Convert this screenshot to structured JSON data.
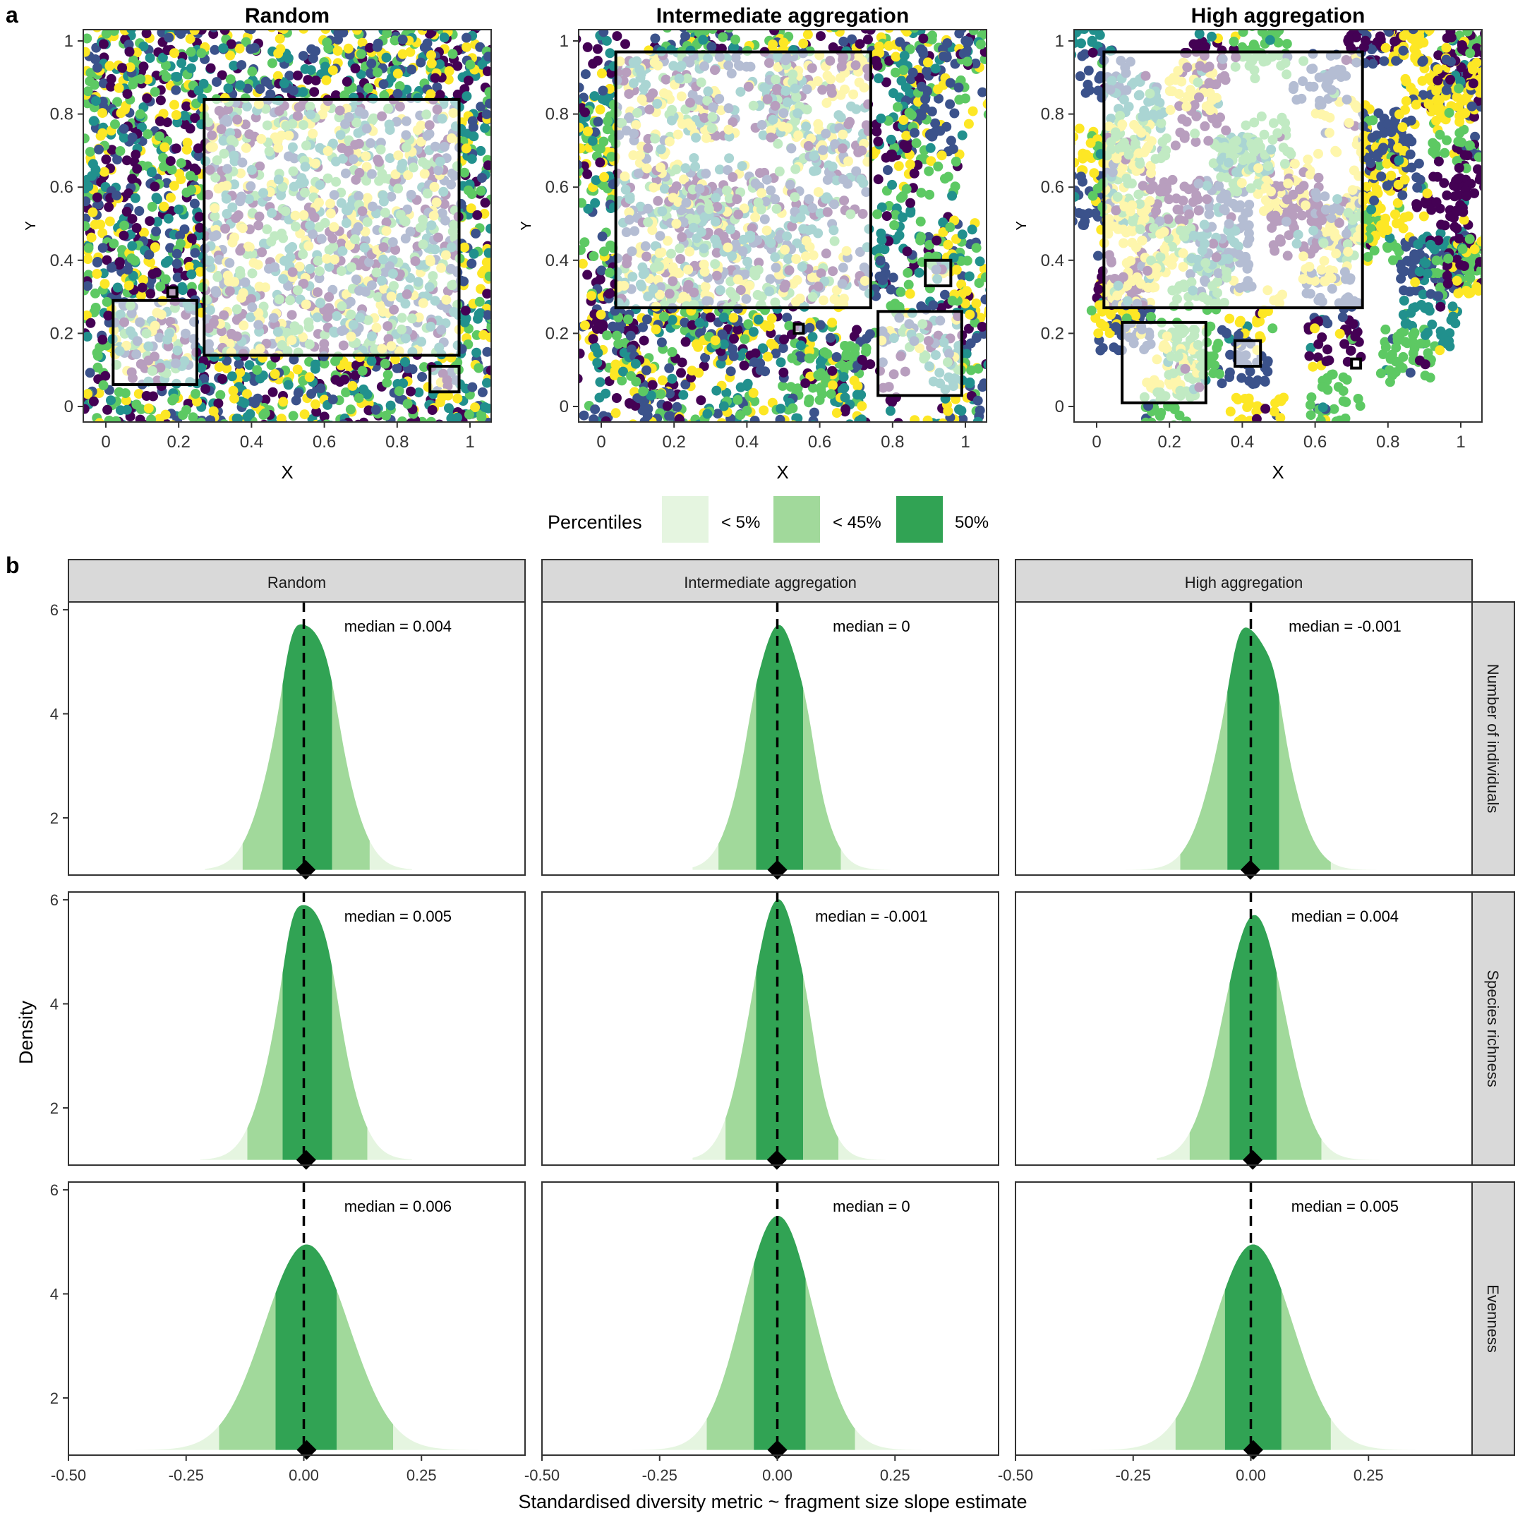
{
  "panel_labels": {
    "a": "a",
    "b": "b"
  },
  "chart_data": [
    {
      "type": "scatter",
      "panel": "a",
      "xlabel": "X",
      "ylabel": "Y",
      "xlim": [
        0,
        1
      ],
      "ylim": [
        0,
        1
      ],
      "x_ticks": [
        "0",
        "0.2",
        "0.4",
        "0.6",
        "0.8",
        "1"
      ],
      "y_ticks": [
        "0",
        "0.2",
        "0.4",
        "0.6",
        "0.8",
        "1"
      ],
      "point_colors": [
        "#440154",
        "#3b528b",
        "#21908d",
        "#5dc963",
        "#fde725"
      ],
      "maps": [
        {
          "title": "Random",
          "aggregation": 0,
          "fragments": [
            {
              "x0": 0.27,
              "y0": 0.14,
              "x1": 0.97,
              "y1": 0.84
            },
            {
              "x0": 0.02,
              "y0": 0.06,
              "x1": 0.25,
              "y1": 0.29
            },
            {
              "x0": 0.89,
              "y0": 0.04,
              "x1": 0.97,
              "y1": 0.11
            },
            {
              "x0": 0.17,
              "y0": 0.3,
              "x1": 0.195,
              "y1": 0.325
            }
          ]
        },
        {
          "title": "Intermediate aggregation",
          "aggregation": 1,
          "fragments": [
            {
              "x0": 0.04,
              "y0": 0.27,
              "x1": 0.74,
              "y1": 0.97
            },
            {
              "x0": 0.76,
              "y0": 0.03,
              "x1": 0.99,
              "y1": 0.26
            },
            {
              "x0": 0.89,
              "y0": 0.33,
              "x1": 0.96,
              "y1": 0.4
            },
            {
              "x0": 0.53,
              "y0": 0.2,
              "x1": 0.555,
              "y1": 0.225
            }
          ]
        },
        {
          "title": "High aggregation",
          "aggregation": 2,
          "fragments": [
            {
              "x0": 0.02,
              "y0": 0.27,
              "x1": 0.73,
              "y1": 0.97
            },
            {
              "x0": 0.07,
              "y0": 0.01,
              "x1": 0.3,
              "y1": 0.23
            },
            {
              "x0": 0.38,
              "y0": 0.11,
              "x1": 0.45,
              "y1": 0.18
            },
            {
              "x0": 0.7,
              "y0": 0.105,
              "x1": 0.725,
              "y1": 0.13
            }
          ]
        }
      ]
    },
    {
      "type": "area",
      "panel": "b",
      "xlabel": "Standardised diversity metric ~ fragment size slope estimate",
      "ylabel": "Density",
      "xlim": [
        -0.5,
        0.47
      ],
      "ylim": [
        0.9,
        6.15
      ],
      "x_ticks": [
        -0.5,
        -0.25,
        0.0,
        0.25
      ],
      "x_tick_labels": [
        "-0.50",
        "-0.25",
        "0.00",
        "0.25"
      ],
      "y_ticks": [
        2,
        4,
        6
      ],
      "y_tick_labels": [
        "2",
        "4",
        "6"
      ],
      "legend": {
        "title": "Percentiles",
        "position": "between-panels",
        "entries": [
          {
            "label": "< 5%",
            "color": "#e5f5e0"
          },
          {
            "label": "< 45%",
            "color": "#a1d99b"
          },
          {
            "label": "50%",
            "color": "#31a354"
          }
        ]
      },
      "columns": [
        "Random",
        "Intermediate aggregation",
        "High aggregation"
      ],
      "rows": [
        "Number of individuals",
        "Species richness",
        "Evenness"
      ],
      "panels": [
        {
          "row": 0,
          "col": 0,
          "median": 0.004,
          "median_label": "median = 0.004",
          "peak": 5.6,
          "sd": 0.065,
          "skew": 0.25,
          "range": [
            -0.21,
            0.23
          ],
          "bands": [
            -0.13,
            -0.045,
            0.06,
            0.14
          ],
          "bumps": [
            {
              "at": -0.03,
              "h": 0.55,
              "w": 0.018
            },
            {
              "at": 0.06,
              "h": 0.35,
              "w": 0.02
            }
          ]
        },
        {
          "row": 0,
          "col": 1,
          "median": 0.0,
          "median_label": "median = 0",
          "peak": 5.7,
          "sd": 0.06,
          "skew": 0.2,
          "range": [
            -0.18,
            0.24
          ],
          "bands": [
            -0.125,
            -0.045,
            0.055,
            0.135
          ],
          "bumps": [
            {
              "at": -0.055,
              "h": 0.25,
              "w": 0.015
            },
            {
              "at": 0.07,
              "h": 0.55,
              "w": 0.018
            }
          ]
        },
        {
          "row": 0,
          "col": 2,
          "median": -0.001,
          "median_label": "median = -0.001",
          "peak": 5.5,
          "sd": 0.065,
          "skew": 0.22,
          "range": [
            -0.3,
            0.3
          ],
          "bands": [
            -0.15,
            -0.05,
            0.06,
            0.17
          ],
          "bumps": [
            {
              "at": -0.03,
              "h": 0.45,
              "w": 0.018
            },
            {
              "at": 0.055,
              "h": 0.45,
              "w": 0.016
            }
          ]
        },
        {
          "row": 1,
          "col": 0,
          "median": 0.005,
          "median_label": "median = 0.005",
          "peak": 5.8,
          "sd": 0.063,
          "skew": 0.25,
          "range": [
            -0.22,
            0.23
          ],
          "bands": [
            -0.12,
            -0.045,
            0.06,
            0.135
          ],
          "bumps": [
            {
              "at": -0.03,
              "h": 0.55,
              "w": 0.018
            },
            {
              "at": 0.06,
              "h": 0.35,
              "w": 0.02
            }
          ]
        },
        {
          "row": 1,
          "col": 1,
          "median": -0.001,
          "median_label": "median = -0.001",
          "peak": 6.0,
          "sd": 0.058,
          "skew": 0.2,
          "range": [
            -0.18,
            0.23
          ],
          "bands": [
            -0.11,
            -0.045,
            0.055,
            0.13
          ],
          "bumps": [
            {
              "at": 0.07,
              "h": 0.55,
              "w": 0.018
            }
          ]
        },
        {
          "row": 1,
          "col": 2,
          "median": 0.004,
          "median_label": "median = 0.004",
          "peak": 5.7,
          "sd": 0.065,
          "skew": 0.2,
          "range": [
            -0.2,
            0.28
          ],
          "bands": [
            -0.13,
            -0.045,
            0.055,
            0.15
          ],
          "bumps": []
        },
        {
          "row": 2,
          "col": 0,
          "median": 0.006,
          "median_label": "median = 0.006",
          "peak": 4.95,
          "sd": 0.09,
          "skew": 0.0,
          "range": [
            -0.45,
            0.44
          ],
          "bands": [
            -0.18,
            -0.06,
            0.07,
            0.19
          ],
          "bumps": []
        },
        {
          "row": 2,
          "col": 1,
          "median": 0.0,
          "median_label": "median = 0",
          "peak": 5.5,
          "sd": 0.075,
          "skew": 0.05,
          "range": [
            -0.33,
            0.35
          ],
          "bands": [
            -0.15,
            -0.05,
            0.06,
            0.165
          ],
          "bumps": []
        },
        {
          "row": 2,
          "col": 2,
          "median": 0.005,
          "median_label": "median = 0.005",
          "peak": 4.95,
          "sd": 0.085,
          "skew": 0.0,
          "range": [
            -0.35,
            0.36
          ],
          "bands": [
            -0.16,
            -0.055,
            0.065,
            0.17
          ],
          "bumps": []
        }
      ]
    }
  ]
}
